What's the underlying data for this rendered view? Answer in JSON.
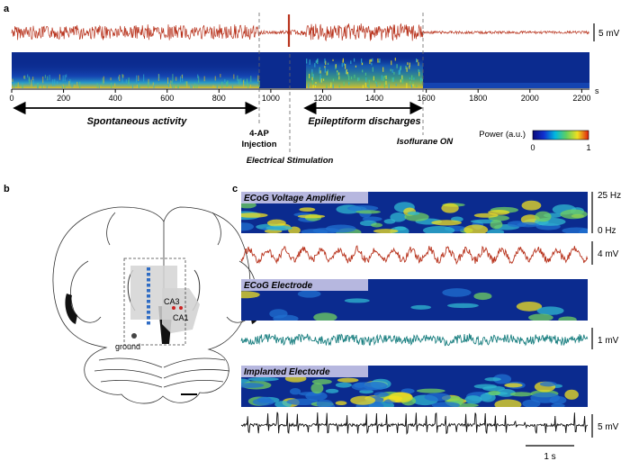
{
  "panels": {
    "a": "a",
    "b": "b",
    "c": "c"
  },
  "colors": {
    "trace_red": "#b8331d",
    "trace_teal": "#1a7f80",
    "trace_black": "#111111",
    "spec_bg": "#0b2b8f",
    "label_box": "#c9c6e8",
    "electrode": "#2f6cc4",
    "region_gray": "#d3d3d3",
    "electrode_red": "#cc2222"
  },
  "panel_a": {
    "scale_label": "5 mV",
    "axis_unit": "s",
    "ticks": [
      "0",
      "200",
      "400",
      "600",
      "800",
      "1000",
      "1200",
      "1400",
      "1600",
      "1800",
      "2000",
      "2200"
    ],
    "spontaneous_label": "Spontaneous activity",
    "epileptiform_label": "Epileptiform discharges",
    "injection_label_1": "4-AP",
    "injection_label_2": "Injection",
    "stimulation_label": "Electrical Stimulation",
    "isoflurane_label": "Isoflurane ON",
    "colorbar_title": "Power (a.u.)",
    "colorbar_min": "0",
    "colorbar_max": "1"
  },
  "panel_b": {
    "ca3_label": "CA3",
    "ca1_label": "CA1",
    "ground_label": "ground"
  },
  "panel_c": {
    "spec1_title": "ECoG Voltage Amplifier",
    "spec2_title": "ECoG Electrode",
    "spec3_title": "Implanted Electorde",
    "freq_top": "25 Hz",
    "freq_bottom": "0 Hz",
    "trace1_scale": "4 mV",
    "trace2_scale": "1 mV",
    "trace3_scale": "5 mV",
    "time_scale": "1 s"
  }
}
